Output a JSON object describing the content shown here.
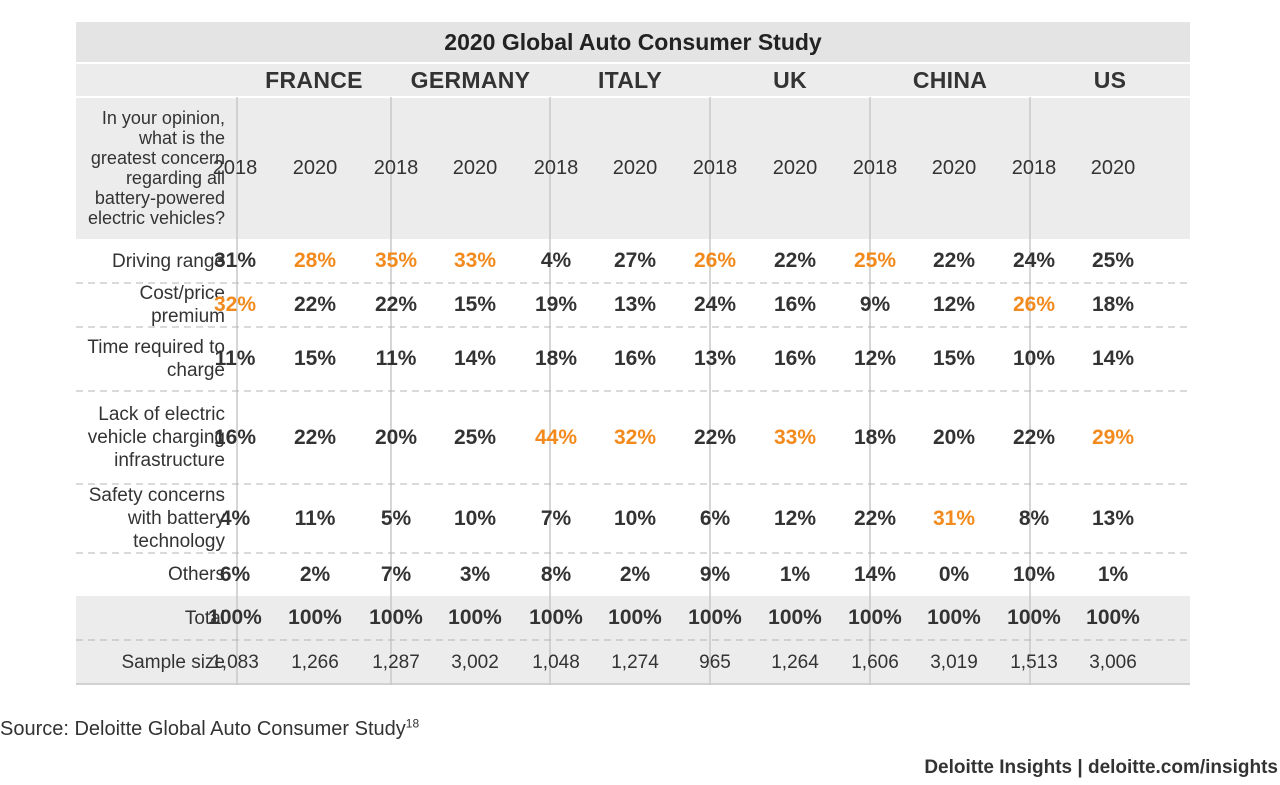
{
  "chart_data": {
    "type": "table",
    "title": "2020 Global Auto Consumer Study",
    "question": "In your opinion, what is the greatest concern regarding all battery-powered electric vehicles?",
    "countries": [
      "FRANCE",
      "GERMANY",
      "ITALY",
      "UK",
      "CHINA",
      "US"
    ],
    "years": [
      "2018",
      "2020"
    ],
    "highlight_color": "#f28a1d",
    "rows": [
      {
        "label": "Driving range",
        "values": [
          "31%",
          "28%",
          "35%",
          "33%",
          "4%",
          "27%",
          "26%",
          "22%",
          "25%",
          "22%",
          "24%",
          "25%"
        ],
        "highlight": [
          1,
          2,
          3,
          6,
          8
        ]
      },
      {
        "label": "Cost/price premium",
        "values": [
          "32%",
          "22%",
          "22%",
          "15%",
          "19%",
          "13%",
          "24%",
          "16%",
          "9%",
          "12%",
          "26%",
          "18%"
        ],
        "highlight": [
          0,
          10
        ]
      },
      {
        "label": "Time required to charge",
        "values": [
          "11%",
          "15%",
          "11%",
          "14%",
          "18%",
          "16%",
          "13%",
          "16%",
          "12%",
          "15%",
          "10%",
          "14%"
        ],
        "highlight": []
      },
      {
        "label": "Lack of electric vehicle charging infrastructure",
        "values": [
          "16%",
          "22%",
          "20%",
          "25%",
          "44%",
          "32%",
          "22%",
          "33%",
          "18%",
          "20%",
          "22%",
          "29%"
        ],
        "highlight": [
          4,
          5,
          7,
          11
        ]
      },
      {
        "label": "Safety concerns with battery technology",
        "values": [
          "4%",
          "11%",
          "5%",
          "10%",
          "7%",
          "10%",
          "6%",
          "12%",
          "22%",
          "31%",
          "8%",
          "13%"
        ],
        "highlight": [
          9
        ]
      },
      {
        "label": "Others",
        "values": [
          "6%",
          "2%",
          "7%",
          "3%",
          "8%",
          "2%",
          "9%",
          "1%",
          "14%",
          "0%",
          "10%",
          "1%"
        ],
        "highlight": []
      }
    ],
    "total": {
      "label": "Total",
      "values": [
        "100%",
        "100%",
        "100%",
        "100%",
        "100%",
        "100%",
        "100%",
        "100%",
        "100%",
        "100%",
        "100%",
        "100%"
      ]
    },
    "sample_size": {
      "label": "Sample size",
      "values": [
        "1,083",
        "1,266",
        "1,287",
        "3,002",
        "1,048",
        "1,274",
        "965",
        "1,264",
        "1,606",
        "3,019",
        "1,513",
        "3,006"
      ]
    }
  },
  "source": {
    "text": "Source: Deloitte Global Auto Consumer Study",
    "footnote": "18"
  },
  "footer": "Deloitte Insights | deloitte.com/insights"
}
